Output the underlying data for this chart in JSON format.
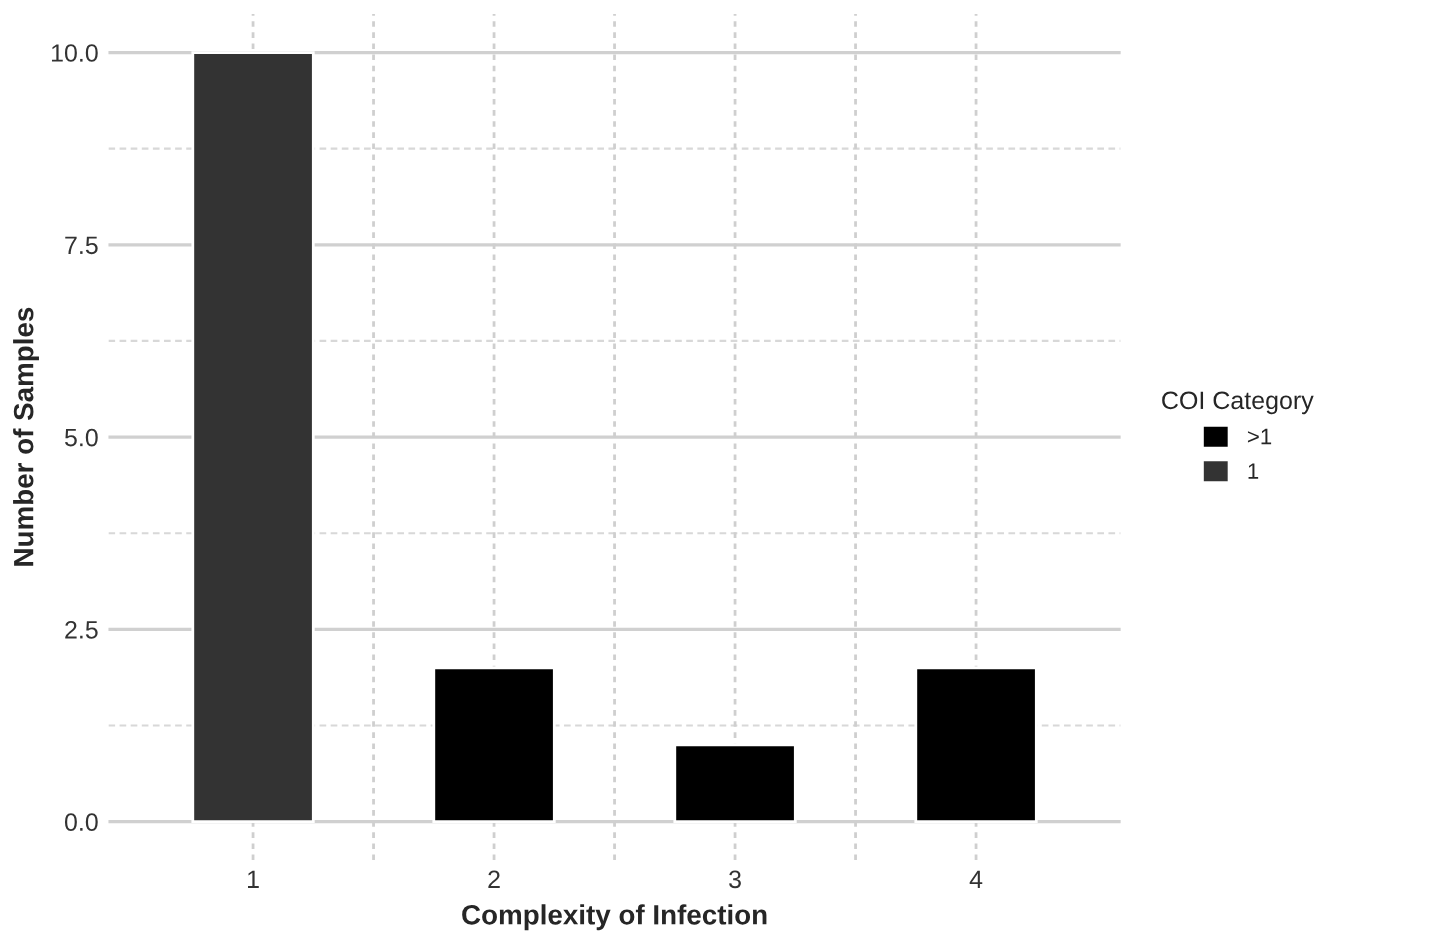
{
  "chart_data": {
    "type": "bar",
    "xlabel": "Complexity of Infection",
    "ylabel": "Number of Samples",
    "legend_title": "COI Category",
    "categories": [
      "1",
      "2",
      "3",
      "4"
    ],
    "series": [
      {
        "name": ">1",
        "color": "#000000",
        "values": [
          null,
          2,
          1,
          2
        ]
      },
      {
        "name": "1",
        "color": "#333333",
        "values": [
          10,
          null,
          null,
          null
        ]
      }
    ],
    "ylim": [
      -0.5,
      10.5
    ],
    "yticks": [
      {
        "value": 0,
        "label": "0.0"
      },
      {
        "value": 2.5,
        "label": "2.5"
      },
      {
        "value": 5,
        "label": "5.0"
      },
      {
        "value": 7.5,
        "label": "7.5"
      },
      {
        "value": 10,
        "label": "10.0"
      }
    ],
    "grid": true,
    "legend": "right"
  }
}
